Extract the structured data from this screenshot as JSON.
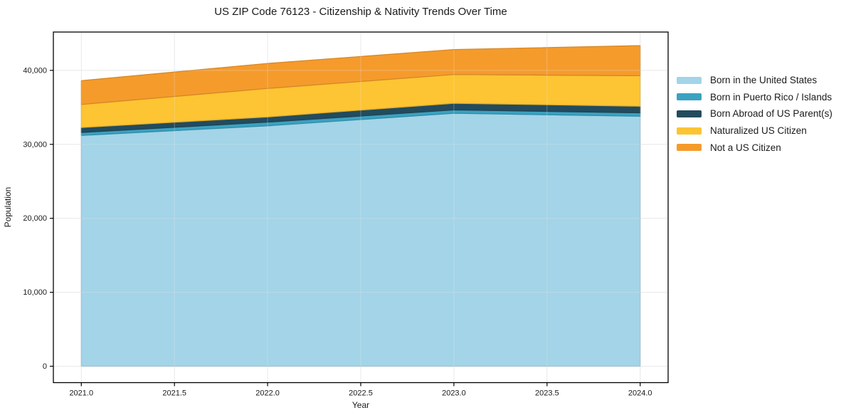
{
  "chart_data": {
    "type": "area",
    "stacked": true,
    "title": "US ZIP Code 76123 - Citizenship & Nativity Trends Over Time",
    "xlabel": "Year",
    "ylabel": "Population",
    "x": [
      2021,
      2022,
      2023,
      2024
    ],
    "series": [
      {
        "name": "Born in the United States",
        "color": "#a3d4e8",
        "values": [
          31200,
          32500,
          34200,
          33800
        ]
      },
      {
        "name": "Born in Puerto Rico / Islands",
        "color": "#3aa2c1",
        "values": [
          400,
          500,
          450,
          460
        ]
      },
      {
        "name": "Born Abroad of US Parent(s)",
        "color": "#234b5e",
        "values": [
          670,
          700,
          900,
          890
        ]
      },
      {
        "name": "Naturalized US Citizen",
        "color": "#fdc433",
        "values": [
          3120,
          3860,
          3890,
          4120
        ]
      },
      {
        "name": "Not a US Citizen",
        "color": "#f59b2c",
        "values": [
          3220,
          3380,
          3380,
          4080
        ]
      }
    ],
    "xlim": [
      2020.85,
      2024.15
    ],
    "ylim": [
      -2216,
      45183
    ],
    "xticks": {
      "values": [
        2021.0,
        2021.5,
        2022.0,
        2022.5,
        2023.0,
        2023.5,
        2024.0
      ],
      "labels": [
        "2021.0",
        "2021.5",
        "2022.0",
        "2022.5",
        "2023.0",
        "2023.5",
        "2024.0"
      ]
    },
    "yticks": {
      "values": [
        0,
        10000,
        20000,
        30000,
        40000
      ],
      "labels": [
        "0",
        "10,000",
        "20,000",
        "30,000",
        "40,000"
      ]
    },
    "grid": true,
    "legend_position": "right-outside",
    "colors": {
      "grid": "#e9e9e9",
      "spine": "#000000",
      "text": "#1a1a1a",
      "background": "#ffffff"
    }
  }
}
